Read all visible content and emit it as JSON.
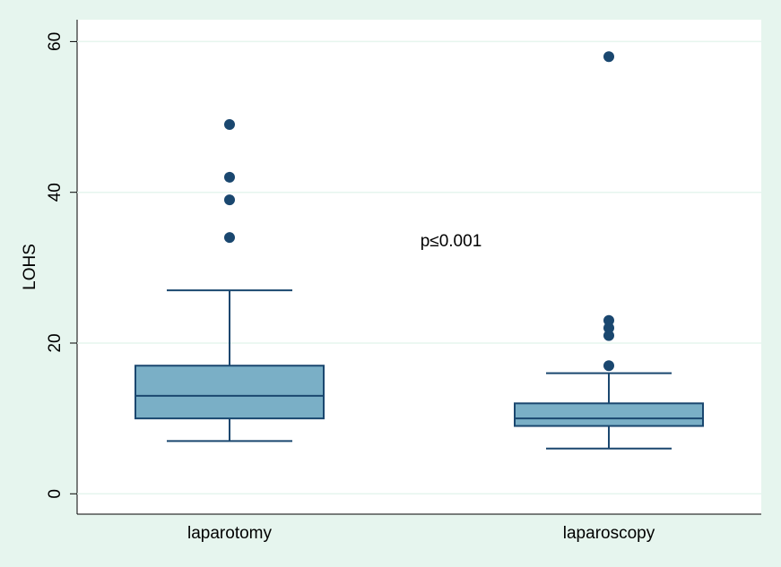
{
  "chart_data": {
    "type": "box",
    "ylabel": "LOHS",
    "annotation": "p≤0.001",
    "categories": [
      "laparotomy",
      "laparoscopy"
    ],
    "boxes": [
      {
        "min": 7,
        "q1": 10,
        "median": 13,
        "q3": 17,
        "max": 27,
        "outliers": [
          34,
          39,
          42,
          49
        ]
      },
      {
        "min": 6,
        "q1": 9,
        "median": 10,
        "q3": 12,
        "max": 16,
        "outliers": [
          17,
          21,
          22,
          23,
          58
        ]
      }
    ],
    "color": "#7aafc6",
    "line_color": "#1a476f",
    "ylim": [
      -2.7,
      62.9
    ],
    "yticks": [
      0,
      20,
      40,
      60
    ],
    "grid": true
  }
}
